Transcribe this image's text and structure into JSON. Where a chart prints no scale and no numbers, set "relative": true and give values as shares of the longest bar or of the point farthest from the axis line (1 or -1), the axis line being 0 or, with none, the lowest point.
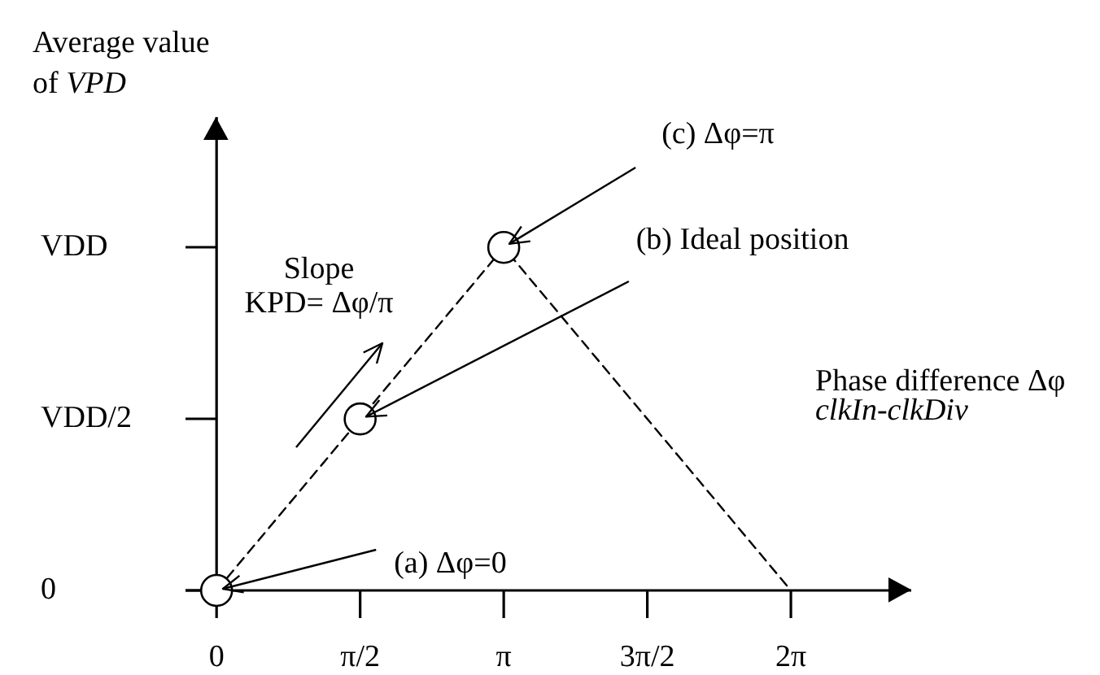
{
  "chart_data": {
    "type": "line",
    "relative": true,
    "xlabel": "Phase difference Δφ\nclkIn-clkDiv",
    "ylabel": "Average value of VPD",
    "xlim": [
      -0.34,
      7.6
    ],
    "xticks": [
      0,
      {
        "value": 1.5708,
        "label": "π/2"
      },
      {
        "value": 3.1416,
        "label": "π"
      },
      {
        "value": 4.7124,
        "label": "3π/2"
      },
      {
        "value": 6.2832,
        "label": "2π"
      }
    ],
    "series": [
      {
        "color": "#000000",
        "x": [
          0,
          3.1416,
          6.2832
        ],
        "values": [
          0,
          1,
          0
        ],
        "line_style": "dashed",
        "marker": "none"
      },
      {
        "type": "scatter",
        "color": "#000000",
        "x": [
          0,
          1.5708,
          3.1416
        ],
        "values": [
          0,
          0.5,
          1
        ],
        "marker": "circle"
      }
    ],
    "annotations": [
      {
        "text": "(c) Δφ=π",
        "x": 3.1416,
        "y": 1
      },
      {
        "text": "(b) Ideal position",
        "x": 1.5708,
        "y": 0.5
      },
      "Slope\nKPD= Δφ/π",
      {
        "text": "(a) Δφ=0",
        "x": 0,
        "y": 0
      },
      "VDD",
      "VDD/2",
      "0"
    ]
  }
}
